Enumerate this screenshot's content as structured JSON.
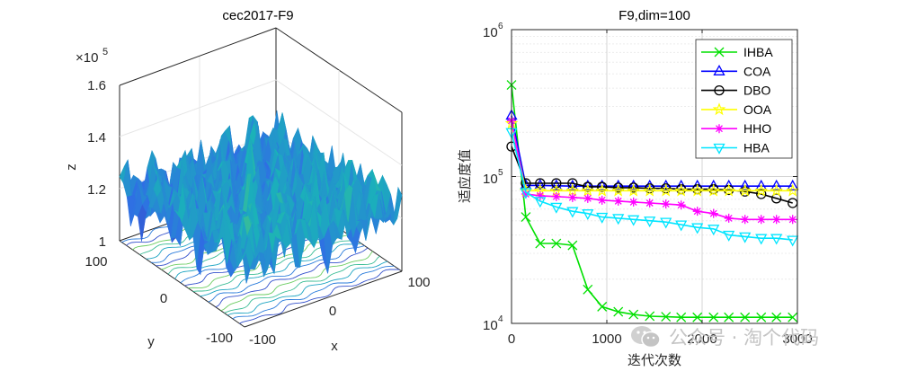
{
  "chart_data": [
    {
      "type": "surface3d",
      "title": "cec2017-F9",
      "xlabel": "x",
      "ylabel": "y",
      "zlabel": "z",
      "x_ticks": [
        "100",
        "0",
        "-100"
      ],
      "y_ticks": [
        "100",
        "0",
        "-100"
      ],
      "z_ticks": [
        "1",
        "1.2",
        "1.4",
        "1.6"
      ],
      "z_exponent_base": "×10",
      "z_exponent_power": "5",
      "xlim": [
        -100,
        100
      ],
      "ylim": [
        -100,
        100
      ],
      "zlim": [
        100000,
        160000
      ],
      "colormap": "parula"
    },
    {
      "type": "line",
      "title": "F9,dim=100",
      "xlabel": "迭代次数",
      "ylabel": "适应度值",
      "yscale": "log",
      "xlim": [
        0,
        3000
      ],
      "ylim": [
        10000,
        1000000
      ],
      "x_ticks": [
        "0",
        "1000",
        "2000",
        "3000"
      ],
      "y_ticks_base": "10",
      "y_ticks_powers": [
        "4",
        "5",
        "6"
      ],
      "legend_position": "top-right",
      "x": [
        0,
        150,
        300,
        470,
        640,
        800,
        950,
        1120,
        1280,
        1450,
        1620,
        1780,
        1950,
        2120,
        2280,
        2450,
        2620,
        2780,
        2950
      ],
      "series": [
        {
          "name": "IHBA",
          "color": "#00e000",
          "marker": "x",
          "values": [
            420000,
            53000,
            35000,
            35000,
            34000,
            17000,
            13000,
            12000,
            11500,
            11200,
            11100,
            11000,
            11000,
            11000,
            11000,
            11000,
            11000,
            11000,
            11000
          ]
        },
        {
          "name": "COA",
          "color": "#0000ff",
          "marker": "triangle-up",
          "values": [
            260000,
            87000,
            87000,
            86500,
            86000,
            86000,
            86000,
            86000,
            86000,
            86000,
            86000,
            86000,
            86000,
            86000,
            86000,
            86000,
            86000,
            86000,
            86000
          ]
        },
        {
          "name": "DBO",
          "color": "#000000",
          "marker": "circle",
          "values": [
            160000,
            90000,
            90000,
            90000,
            90000,
            85000,
            85000,
            84000,
            84000,
            83000,
            83000,
            82000,
            82000,
            82000,
            81000,
            79000,
            76000,
            71000,
            66000
          ]
        },
        {
          "name": "OOA",
          "color": "#ffff00",
          "marker": "star",
          "values": [
            230000,
            80000,
            80000,
            80000,
            80000,
            80000,
            80000,
            80000,
            80000,
            80000,
            80000,
            80000,
            80000,
            80000,
            80000,
            80000,
            80000,
            80000,
            80000
          ]
        },
        {
          "name": "HHO",
          "color": "#ff00ff",
          "marker": "asterisk",
          "values": [
            240000,
            76000,
            74000,
            73000,
            72000,
            71000,
            69000,
            68000,
            67000,
            66000,
            65000,
            64000,
            58000,
            56000,
            52000,
            51000,
            51000,
            51000,
            51000
          ]
        },
        {
          "name": "HBA",
          "color": "#00e5ff",
          "marker": "triangle-down",
          "values": [
            200000,
            78000,
            68000,
            62000,
            58000,
            56000,
            53000,
            52000,
            51000,
            50000,
            49000,
            47000,
            45000,
            44000,
            40000,
            39000,
            38000,
            38000,
            37000
          ]
        }
      ]
    }
  ],
  "watermark": {
    "text": "公众号 · 淘个代码"
  }
}
